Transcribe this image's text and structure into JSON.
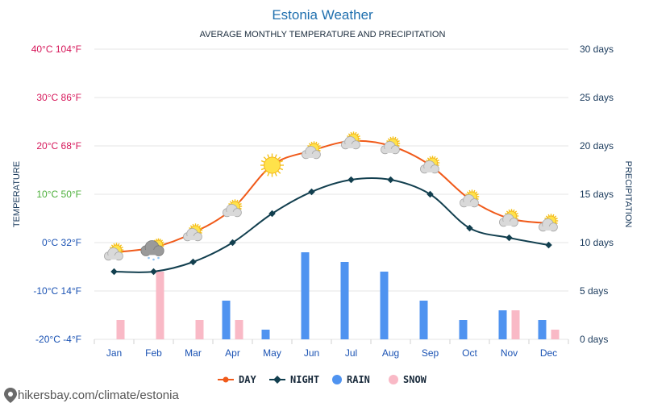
{
  "chart_data": {
    "type": "line",
    "title": "Estonia Weather",
    "subtitle": "AVERAGE MONTHLY TEMPERATURE AND PRECIPITATION",
    "categories": [
      "Jan",
      "Feb",
      "Mar",
      "Apr",
      "May",
      "Jun",
      "Jul",
      "Aug",
      "Sep",
      "Oct",
      "Nov",
      "Dec"
    ],
    "ylabel_left": "TEMPERATURE",
    "ylabel_right": "PRECIPITATION",
    "ylim_left": [
      -20,
      40
    ],
    "ylim_right": [
      0,
      30
    ],
    "left_ticks": [
      {
        "value": 40,
        "label": "40°C 104°F",
        "color": "#d6175a"
      },
      {
        "value": 30,
        "label": "30°C 86°F",
        "color": "#d6175a"
      },
      {
        "value": 20,
        "label": "20°C 68°F",
        "color": "#d6175a"
      },
      {
        "value": 10,
        "label": "10°C 50°F",
        "color": "#4caf3a"
      },
      {
        "value": 0,
        "label": "0°C 32°F",
        "color": "#1a52b3"
      },
      {
        "value": -10,
        "label": "-10°C 14°F",
        "color": "#1a52b3"
      },
      {
        "value": -20,
        "label": "-20°C -4°F",
        "color": "#1a52b3"
      }
    ],
    "right_ticks": [
      {
        "value": 30,
        "label": "30 days"
      },
      {
        "value": 25,
        "label": "25 days"
      },
      {
        "value": 20,
        "label": "20 days"
      },
      {
        "value": 15,
        "label": "15 days"
      },
      {
        "value": 10,
        "label": "10 days"
      },
      {
        "value": 5,
        "label": "5 days"
      },
      {
        "value": 0,
        "label": "0 days"
      }
    ],
    "series": [
      {
        "name": "DAY",
        "kind": "line",
        "axis": "left",
        "color": "#f05a1a",
        "values": [
          -2,
          -1,
          2,
          7,
          16,
          19,
          21,
          20,
          16,
          9,
          5,
          4
        ]
      },
      {
        "name": "NIGHT",
        "kind": "line",
        "axis": "left",
        "color": "#123f4f",
        "values": [
          -6,
          -6,
          -4,
          0,
          6,
          10.5,
          13,
          13,
          10,
          3,
          1,
          -0.5
        ]
      },
      {
        "name": "RAIN",
        "kind": "bar",
        "axis": "right",
        "color": "#4f93f0",
        "values": [
          0,
          0,
          0,
          4,
          1,
          9,
          8,
          7,
          4,
          2,
          3,
          2
        ]
      },
      {
        "name": "SNOW",
        "kind": "bar",
        "axis": "right",
        "color": "#f9b9c6",
        "values": [
          2,
          7,
          2,
          2,
          0,
          0,
          0,
          0,
          0,
          0,
          3,
          1
        ]
      }
    ],
    "weather_icons": [
      "cloudy-sun",
      "snow-cloud",
      "cloudy-sun",
      "cloudy-sun",
      "sun",
      "cloudy-sun",
      "cloudy-sun",
      "cloudy-sun",
      "cloudy-sun",
      "cloudy-sun",
      "cloudy-sun",
      "cloudy-sun"
    ],
    "grid": true,
    "legend_position": "bottom"
  },
  "source": "hikersbay.com/climate/estonia",
  "colors": {
    "title": "#1f6fae",
    "axis_right": "#1a3a5c"
  }
}
